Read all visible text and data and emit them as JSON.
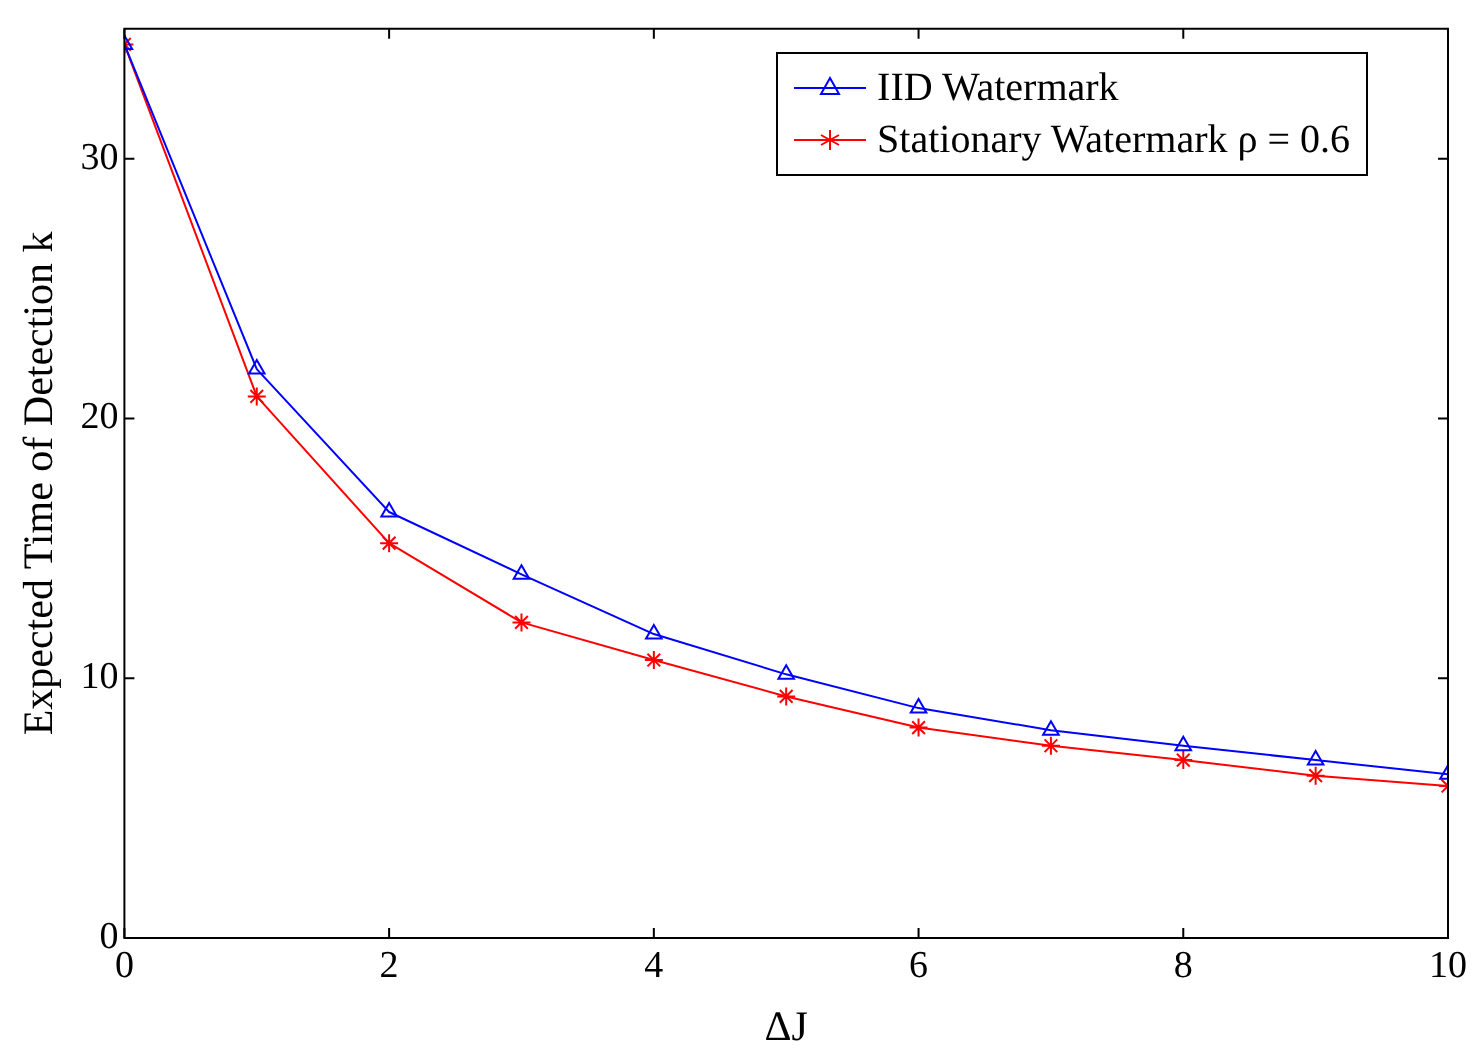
{
  "chart_data": {
    "type": "line",
    "xlabel": "ΔJ",
    "ylabel": "Expected Time of Detection k",
    "x": [
      0,
      1,
      2,
      3,
      4,
      5,
      6,
      7,
      8,
      9,
      10
    ],
    "series": [
      {
        "name": "IID Watermark",
        "color": "#0000ff",
        "marker": "triangle",
        "values": [
          34.4,
          21.9,
          16.4,
          14.0,
          11.7,
          10.15,
          8.85,
          8.0,
          7.4,
          6.85,
          6.3
        ]
      },
      {
        "name": "Stationary Watermark ρ = 0.6",
        "color": "#ff0000",
        "marker": "cross",
        "values": [
          34.4,
          20.85,
          15.2,
          12.15,
          10.7,
          9.3,
          8.1,
          7.4,
          6.85,
          6.25,
          5.85
        ]
      }
    ],
    "xlim": [
      0,
      10
    ],
    "xticks": [
      0,
      2,
      4,
      6,
      8,
      10
    ],
    "ylim": [
      0,
      35
    ],
    "yticks": [
      0,
      10,
      20,
      30
    ],
    "grid": false,
    "legend": "top right",
    "line_style": "solid"
  }
}
